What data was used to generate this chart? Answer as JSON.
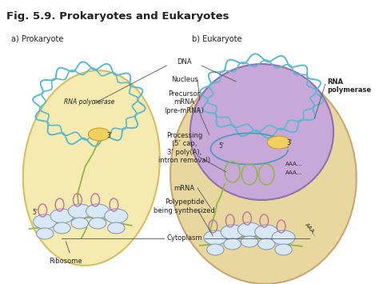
{
  "title": "Fig. 5.9. Prokaryotes and Eukaryotes",
  "title_fontsize": 9.5,
  "title_fontweight": "bold",
  "label_a": "a) Prokaryote",
  "label_b": "b) Eukaryote",
  "bg_color": "#ffffff",
  "prokaryote_cell_color": "#f5ebb0",
  "prokaryote_cell_edge": "#d4c060",
  "eukaryote_cell_color": "#e8d8a0",
  "eukaryote_cell_edge": "#c8a870",
  "nucleus_color": "#c8a8d8",
  "nucleus_edge": "#9070b0",
  "dna_color": "#5ab8d0",
  "rna_pol_color": "#f0d060",
  "mrna_color": "#90b840",
  "ribosome_body_color": "#d8e8f4",
  "ribosome_edge": "#8090b8",
  "polypeptide_color": "#c070a0",
  "text_color": "#222222",
  "annotation_fontsize": 6.0,
  "label_fontsize": 7.0,
  "line_color": "#555555"
}
